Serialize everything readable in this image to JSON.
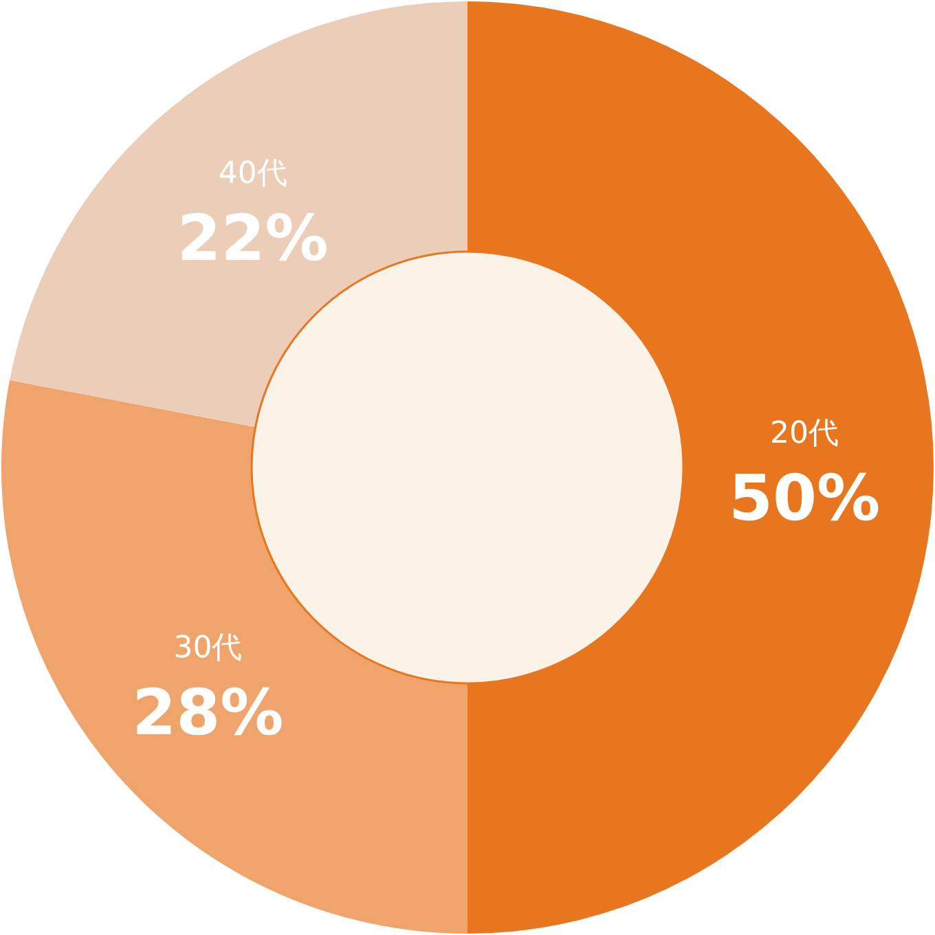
{
  "chart_data": {
    "type": "donut",
    "categories": [
      "20代",
      "30代",
      "40代"
    ],
    "values": [
      50,
      28,
      22
    ],
    "colors": [
      "#e8761f",
      "#eea46b",
      "#ebcdb8"
    ],
    "value_labels": [
      "50%",
      "28%",
      "22%"
    ]
  }
}
